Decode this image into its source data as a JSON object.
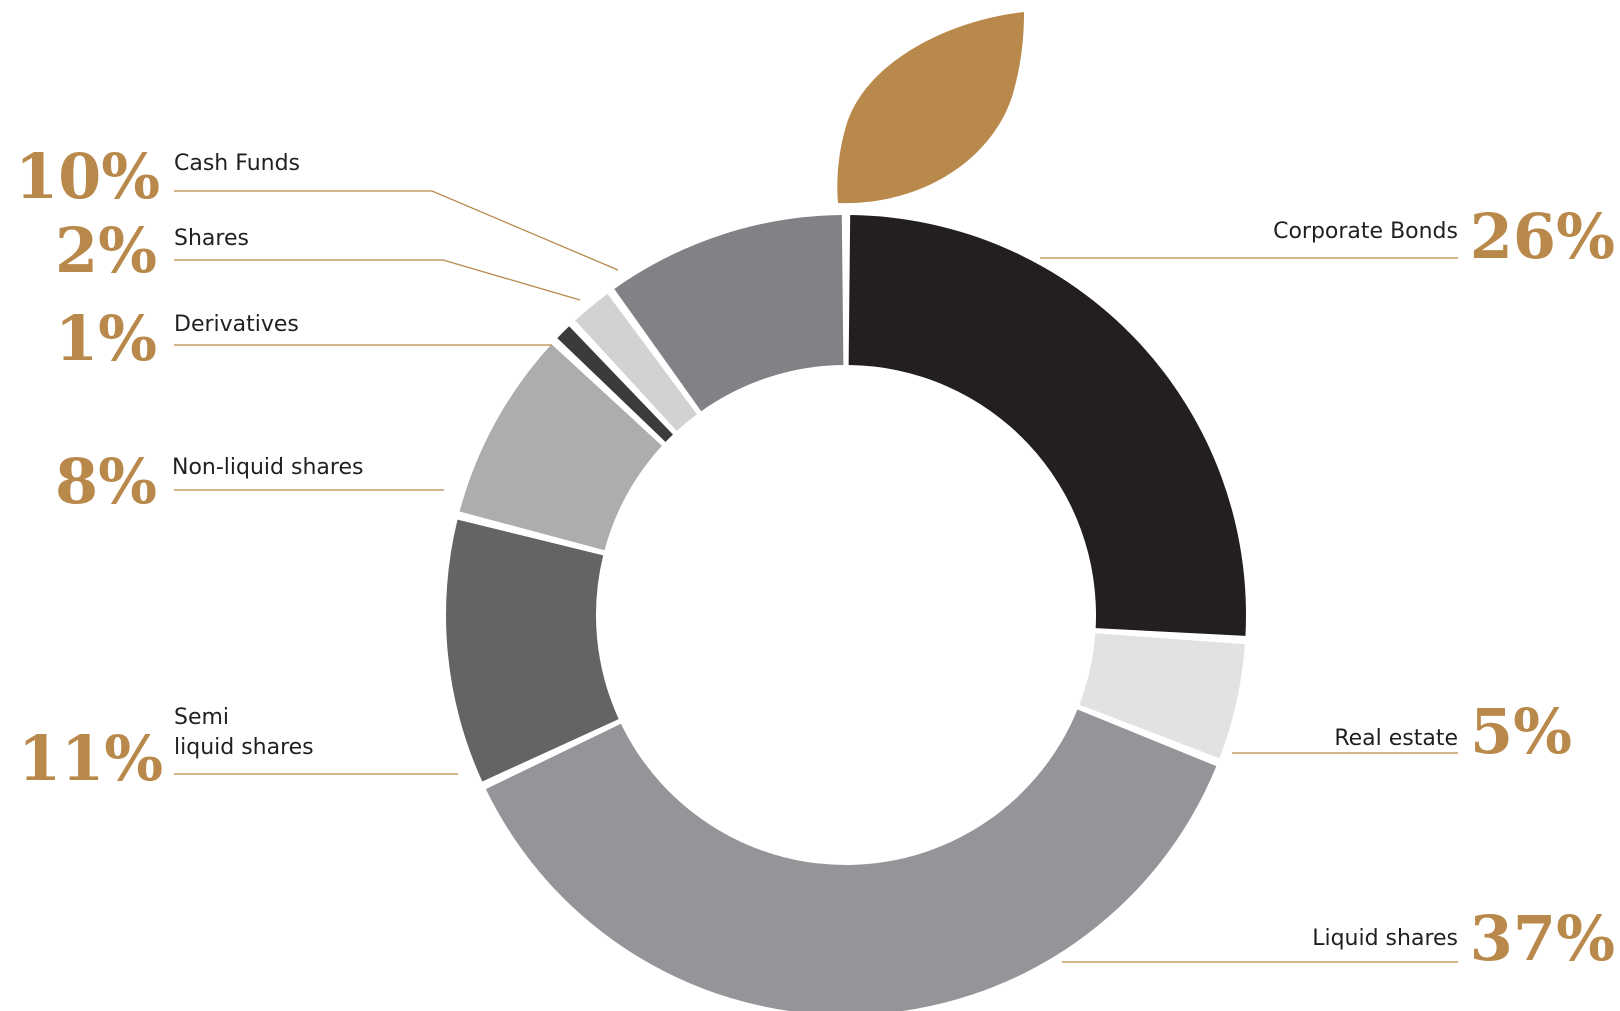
{
  "chart_data": {
    "type": "pie",
    "style": "donut",
    "slices": [
      {
        "label": "Corporate Bonds",
        "value": 26,
        "value_label": "26%",
        "color": "#231f20"
      },
      {
        "label": "Real estate",
        "value": 5,
        "value_label": "5%",
        "color": "#e1e2e3"
      },
      {
        "label": "Liquid shares",
        "value": 37,
        "value_label": "37%",
        "color": "#939598"
      },
      {
        "label": "Semi liquid shares",
        "label_lines": [
          "Semi",
          "liquid shares"
        ],
        "value": 11,
        "value_label": "11%",
        "color": "#636466"
      },
      {
        "label": "Non-liquid shares",
        "value": 8,
        "value_label": "8%",
        "color": "#acadaf"
      },
      {
        "label": "Derivatives",
        "value": 1,
        "value_label": "1%",
        "color": "#3b3b3d"
      },
      {
        "label": "Shares",
        "value": 2,
        "value_label": "2%",
        "color": "#d1d2d4"
      },
      {
        "label": "Cash Funds",
        "value": 10,
        "value_label": "10%",
        "color": "#808285"
      }
    ],
    "label_color": "#b9894b",
    "leaf_color": "#b9894b"
  }
}
